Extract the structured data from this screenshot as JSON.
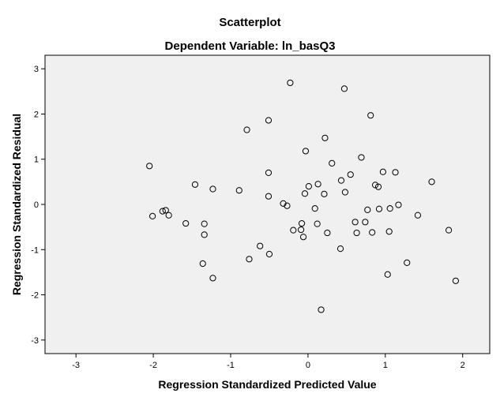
{
  "chart_data": {
    "type": "scatter",
    "title": "Scatterplot",
    "subtitle": "Dependent Variable: ln_basQ3",
    "xlabel": "Regression Standardized Predicted Value",
    "ylabel": "Regression Standardized Residual",
    "xlim": [
      -3.4,
      2.35
    ],
    "ylim": [
      -3.3,
      3.3
    ],
    "x_ticks": [
      -3,
      -2,
      -1,
      0,
      1,
      2
    ],
    "y_ticks": [
      3,
      2,
      1,
      0,
      -1,
      -2,
      -3
    ],
    "grid": false,
    "plot_background": "#f0f0f0",
    "marker": "hollow-circle",
    "points": [
      {
        "x": -0.23,
        "y": 2.69
      },
      {
        "x": 0.47,
        "y": 2.56
      },
      {
        "x": 0.81,
        "y": 1.97
      },
      {
        "x": -0.51,
        "y": 1.86
      },
      {
        "x": -0.79,
        "y": 1.65
      },
      {
        "x": 0.22,
        "y": 1.47
      },
      {
        "x": -0.03,
        "y": 1.18
      },
      {
        "x": 0.69,
        "y": 1.04
      },
      {
        "x": 0.31,
        "y": 0.91
      },
      {
        "x": -2.05,
        "y": 0.85
      },
      {
        "x": 0.97,
        "y": 0.72
      },
      {
        "x": 1.13,
        "y": 0.71
      },
      {
        "x": -0.51,
        "y": 0.7
      },
      {
        "x": 0.55,
        "y": 0.66
      },
      {
        "x": 0.43,
        "y": 0.53
      },
      {
        "x": 1.6,
        "y": 0.5
      },
      {
        "x": -1.46,
        "y": 0.44
      },
      {
        "x": 0.13,
        "y": 0.45
      },
      {
        "x": 0.87,
        "y": 0.43
      },
      {
        "x": 0.01,
        "y": 0.4
      },
      {
        "x": 0.91,
        "y": 0.39
      },
      {
        "x": -1.23,
        "y": 0.34
      },
      {
        "x": -0.89,
        "y": 0.31
      },
      {
        "x": 0.48,
        "y": 0.27
      },
      {
        "x": -0.04,
        "y": 0.24
      },
      {
        "x": 0.21,
        "y": 0.23
      },
      {
        "x": -0.51,
        "y": 0.18
      },
      {
        "x": -0.32,
        "y": 0.02
      },
      {
        "x": -0.27,
        "y": -0.03
      },
      {
        "x": 1.17,
        "y": -0.01
      },
      {
        "x": 0.09,
        "y": -0.09
      },
      {
        "x": 0.92,
        "y": -0.1
      },
      {
        "x": 1.06,
        "y": -0.09
      },
      {
        "x": 0.77,
        "y": -0.12
      },
      {
        "x": -1.88,
        "y": -0.15
      },
      {
        "x": -1.84,
        "y": -0.13
      },
      {
        "x": -2.01,
        "y": -0.26
      },
      {
        "x": -1.8,
        "y": -0.24
      },
      {
        "x": 1.42,
        "y": -0.24
      },
      {
        "x": 0.61,
        "y": -0.39
      },
      {
        "x": 0.74,
        "y": -0.39
      },
      {
        "x": -1.58,
        "y": -0.42
      },
      {
        "x": -1.34,
        "y": -0.43
      },
      {
        "x": -0.08,
        "y": -0.42
      },
      {
        "x": 0.12,
        "y": -0.43
      },
      {
        "x": -0.19,
        "y": -0.57
      },
      {
        "x": -0.09,
        "y": -0.56
      },
      {
        "x": 0.25,
        "y": -0.63
      },
      {
        "x": 0.63,
        "y": -0.63
      },
      {
        "x": 0.83,
        "y": -0.62
      },
      {
        "x": 1.05,
        "y": -0.6
      },
      {
        "x": 1.82,
        "y": -0.57
      },
      {
        "x": -1.34,
        "y": -0.67
      },
      {
        "x": -0.06,
        "y": -0.72
      },
      {
        "x": -0.62,
        "y": -0.92
      },
      {
        "x": 0.42,
        "y": -0.98
      },
      {
        "x": -0.5,
        "y": -1.1
      },
      {
        "x": -0.76,
        "y": -1.21
      },
      {
        "x": -1.36,
        "y": -1.31
      },
      {
        "x": 1.28,
        "y": -1.29
      },
      {
        "x": 1.03,
        "y": -1.55
      },
      {
        "x": -1.23,
        "y": -1.63
      },
      {
        "x": 1.91,
        "y": -1.69
      },
      {
        "x": 0.17,
        "y": -2.33
      }
    ]
  }
}
